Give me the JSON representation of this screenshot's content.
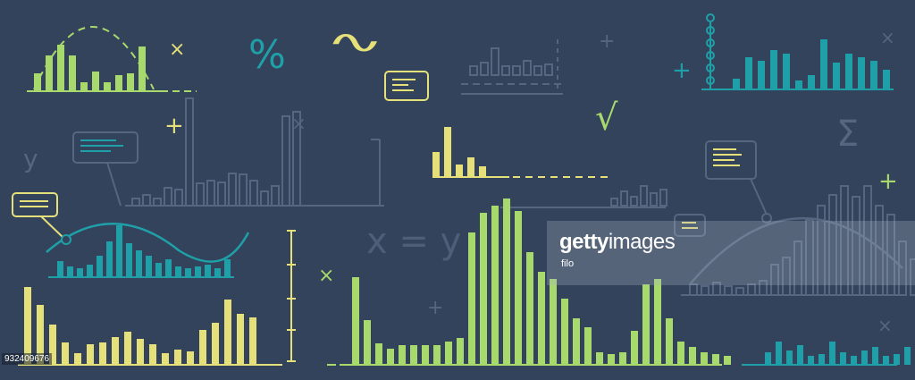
{
  "colors": {
    "background": "#33435b",
    "lime": "#a8d96c",
    "yellow": "#e5e07a",
    "teal": "#1fa0a8",
    "muted": "#546680",
    "watermark_panel": "#aab4c3"
  },
  "symbols": {
    "percent": "%",
    "wave": "∿",
    "sqrt": "√",
    "sigma": "Σ",
    "y_var": "y",
    "equation": "x = y",
    "plus": "+",
    "times": "×"
  },
  "watermark": {
    "brand_bold": "getty",
    "brand_light": "images",
    "credit": "filo"
  },
  "image_id": "932409676",
  "icons": [
    "speech-bubble-icon",
    "plus-icon",
    "times-icon",
    "percent-icon",
    "wave-icon",
    "sqrt-icon",
    "sigma-icon"
  ]
}
